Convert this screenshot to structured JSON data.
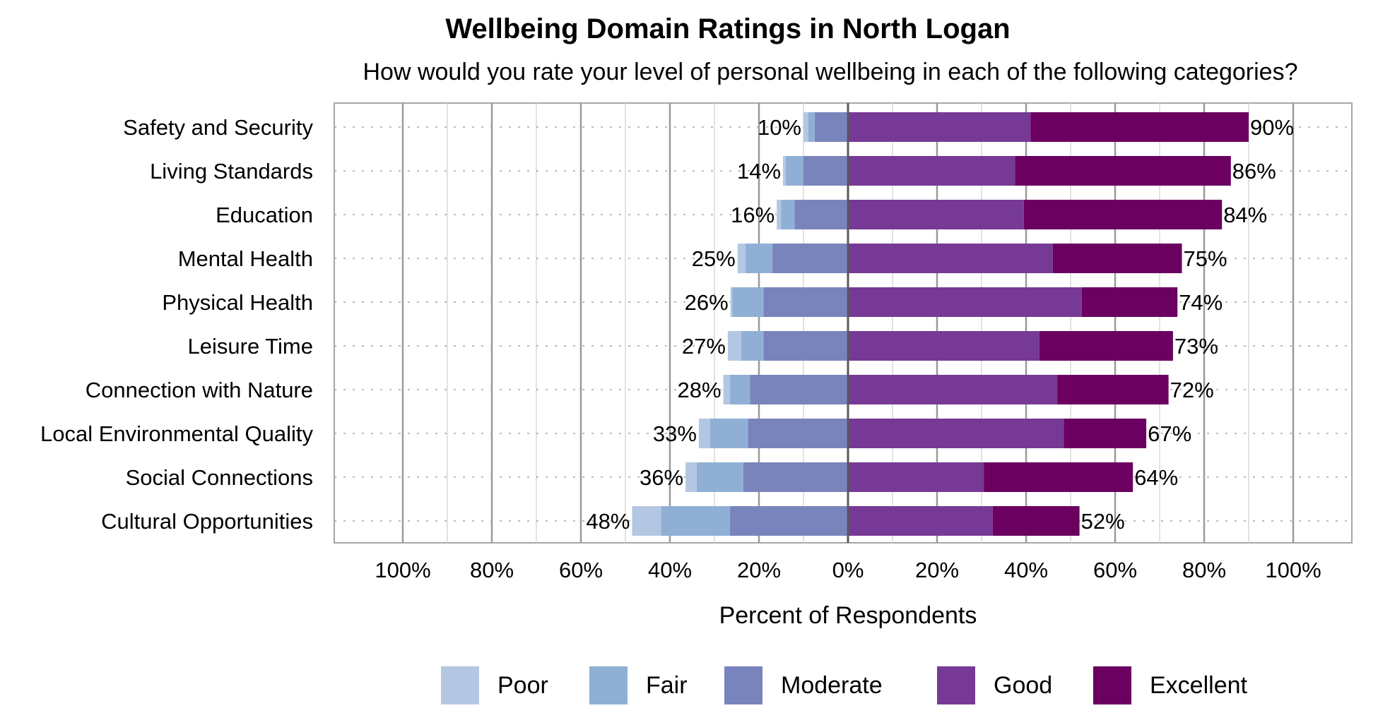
{
  "chart_data": {
    "type": "bar",
    "orientation": "horizontal",
    "stacking": "diverging",
    "title": "Wellbeing Domain Ratings in North Logan",
    "subtitle": "How would you rate your level of personal wellbeing in each of the following categories?",
    "xlabel": "Percent of Respondents",
    "ylabel": "",
    "xlim": [
      -100,
      100
    ],
    "x_ticks": [
      "100%",
      "80%",
      "60%",
      "40%",
      "20%",
      "0%",
      "20%",
      "40%",
      "60%",
      "80%",
      "100%"
    ],
    "grid": true,
    "legend_position": "bottom",
    "categories": [
      "Safety and Security",
      "Living Standards",
      "Education",
      "Mental Health",
      "Physical Health",
      "Leisure Time",
      "Connection with Nature",
      "Local Environmental Quality",
      "Social Connections",
      "Cultural Opportunities"
    ],
    "series": [
      {
        "name": "Poor",
        "side": "negative",
        "color": "#b4c7e2",
        "values": [
          1,
          0.6,
          1,
          1.8,
          0.4,
          3,
          1.5,
          2.5,
          2.5,
          6.5
        ]
      },
      {
        "name": "Fair",
        "side": "negative",
        "color": "#8fb0d4",
        "values": [
          1.5,
          4,
          3,
          6,
          7,
          5,
          4.5,
          8.5,
          10.5,
          15.5
        ]
      },
      {
        "name": "Moderate",
        "side": "negative",
        "color": "#7a84bc",
        "values": [
          7.5,
          10,
          12,
          17,
          19,
          19,
          22,
          22.5,
          23.5,
          26.5
        ]
      },
      {
        "name": "Good",
        "side": "positive",
        "color": "#763a96",
        "values": [
          41,
          37.5,
          39.5,
          46,
          52.5,
          43,
          47,
          48.5,
          30.5,
          32.5
        ]
      },
      {
        "name": "Excellent",
        "side": "positive",
        "color": "#6b0060",
        "values": [
          49,
          48.5,
          44.5,
          29,
          21.5,
          30,
          25,
          18.5,
          33.5,
          19.5
        ]
      }
    ],
    "negative_totals": [
      "10%",
      "14%",
      "16%",
      "25%",
      "26%",
      "27%",
      "28%",
      "33%",
      "36%",
      "48%"
    ],
    "positive_totals": [
      "90%",
      "86%",
      "84%",
      "75%",
      "74%",
      "73%",
      "72%",
      "67%",
      "64%",
      "52%"
    ]
  }
}
